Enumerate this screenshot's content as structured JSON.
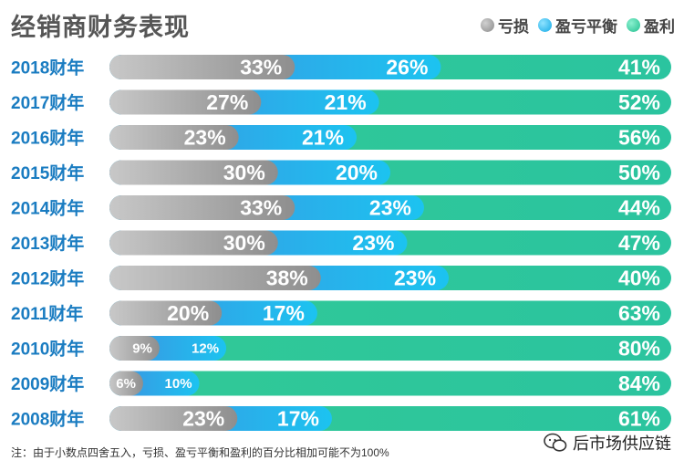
{
  "title": "经销商财务表现",
  "legend": [
    {
      "label": "亏损",
      "color": "#9a9a9a"
    },
    {
      "label": "盈亏平衡",
      "color": "#24b6ea"
    },
    {
      "label": "盈利",
      "color": "#2ec79b"
    }
  ],
  "footnote": "注：由于小数点四舍五入，亏损、盈亏平衡和盈利的百分比相加可能不为100%",
  "watermark": "后市场供应链",
  "colors": {
    "loss": "#9d9d9d",
    "breakeven": "#27aee8",
    "profit": "#2fc79a",
    "label": "#1a7cc1"
  },
  "chart_data": {
    "type": "bar",
    "orientation": "horizontal",
    "stacked": true,
    "categories": [
      "2018财年",
      "2017财年",
      "2016财年",
      "2015财年",
      "2014财年",
      "2013财年",
      "2012财年",
      "2011财年",
      "2010财年",
      "2009财年",
      "2008财年"
    ],
    "series": [
      {
        "name": "亏损",
        "values": [
          33,
          27,
          23,
          30,
          33,
          30,
          38,
          20,
          9,
          6,
          23
        ],
        "labels": [
          "33%",
          "27%",
          "23%",
          "30%",
          "33%",
          "30%",
          "38%",
          "20%",
          "9%",
          "6%",
          "23%"
        ]
      },
      {
        "name": "盈亏平衡",
        "values": [
          26,
          21,
          21,
          20,
          23,
          23,
          23,
          17,
          12,
          10,
          17
        ],
        "labels": [
          "26%",
          "21%",
          "21%",
          "20%",
          "23%",
          "23%",
          "23%",
          "17%",
          "12%",
          "10%",
          "17%"
        ]
      },
      {
        "name": "盈利",
        "values": [
          41,
          52,
          56,
          50,
          44,
          47,
          40,
          63,
          80,
          84,
          61
        ],
        "labels": [
          "41%",
          "52%",
          "56%",
          "50%",
          "44%",
          "47%",
          "40%",
          "63%",
          "80%",
          "84%",
          "61%"
        ]
      }
    ],
    "xlim": [
      0,
      100
    ]
  }
}
